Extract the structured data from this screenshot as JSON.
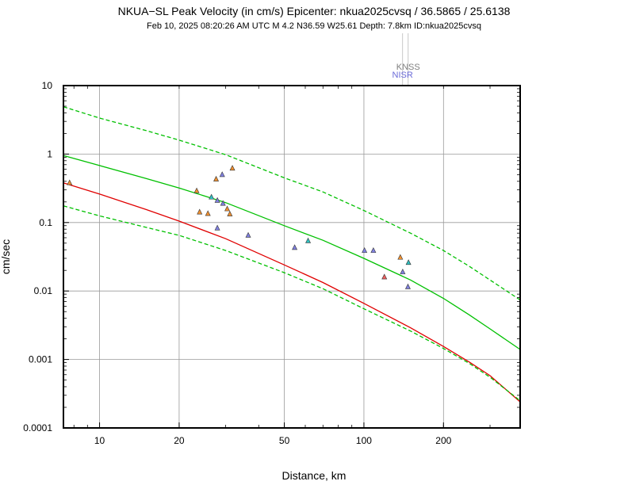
{
  "chart_data": {
    "type": "scatter",
    "title": "NKUA−SL Peak Velocity (in cm/s) Epicenter: nkua2025cvsq / 36.5865 / 25.6138",
    "subtitle": "Feb 10, 2025 08:20:26 AM UTC   M 4.2   N36.59 W25.61   Depth: 7.8km   ID:nkua2025cvsq",
    "xlabel": "Distance, km",
    "ylabel": "cm/sec",
    "xscale": "log",
    "yscale": "log",
    "xlim": [
      7.3,
      390
    ],
    "ylim": [
      0.0001,
      10
    ],
    "xticks": [
      {
        "value": 10,
        "label": "10"
      },
      {
        "value": 20,
        "label": "20"
      },
      {
        "value": 50,
        "label": "50"
      },
      {
        "value": 100,
        "label": "100"
      },
      {
        "value": 200,
        "label": "200"
      }
    ],
    "yticks": [
      {
        "value": 0.0001,
        "label": "0.0001"
      },
      {
        "value": 0.001,
        "label": "0.001"
      },
      {
        "value": 0.01,
        "label": "0.01"
      },
      {
        "value": 0.1,
        "label": "0.1"
      },
      {
        "value": 1,
        "label": "1"
      },
      {
        "value": 10,
        "label": "10"
      }
    ],
    "grid": true,
    "station_labels": [
      {
        "label": "KNSS",
        "x": 147,
        "color": "#7f7f7f"
      },
      {
        "label": "NISR",
        "x": 140,
        "color": "#6a6ad8"
      }
    ],
    "series": [
      {
        "style": "solid",
        "color": "#e00000",
        "x": [
          7.3,
          10,
          15,
          20,
          30,
          50,
          70,
          100,
          150,
          200,
          250,
          300,
          390
        ],
        "y": [
          0.38,
          0.26,
          0.155,
          0.105,
          0.058,
          0.024,
          0.0133,
          0.0066,
          0.0029,
          0.00155,
          0.00092,
          0.00058,
          0.00024
        ]
      },
      {
        "style": "solid",
        "color": "#00c000",
        "x": [
          7.3,
          10,
          15,
          20,
          30,
          50,
          70,
          100,
          150,
          200,
          250,
          300,
          390
        ],
        "y": [
          0.95,
          0.68,
          0.44,
          0.32,
          0.195,
          0.09,
          0.055,
          0.03,
          0.0145,
          0.0078,
          0.0045,
          0.0028,
          0.0014
        ]
      },
      {
        "style": "dashed",
        "color": "#00c000",
        "x": [
          7.3,
          10,
          15,
          20,
          30,
          50,
          70,
          100,
          150,
          200,
          250,
          300,
          390
        ],
        "y": [
          4.9,
          3.35,
          2.2,
          1.6,
          0.98,
          0.45,
          0.28,
          0.15,
          0.07,
          0.039,
          0.023,
          0.0145,
          0.0074
        ]
      },
      {
        "style": "dashed",
        "color": "#00c000",
        "x": [
          7.3,
          10,
          15,
          20,
          30,
          50,
          70,
          100,
          150,
          200,
          250,
          300,
          390
        ],
        "y": [
          0.175,
          0.125,
          0.085,
          0.065,
          0.039,
          0.0185,
          0.0108,
          0.0055,
          0.0026,
          0.00145,
          0.00088,
          0.00055,
          0.00025
        ]
      }
    ],
    "points": [
      {
        "x": 7.7,
        "y": 0.38,
        "color": "#f09030"
      },
      {
        "x": 23.3,
        "y": 0.29,
        "color": "#f09030"
      },
      {
        "x": 23.9,
        "y": 0.142,
        "color": "#f09030"
      },
      {
        "x": 25.7,
        "y": 0.135,
        "color": "#f09030"
      },
      {
        "x": 26.5,
        "y": 0.235,
        "color": "#30c0c0"
      },
      {
        "x": 27.6,
        "y": 0.43,
        "color": "#f09030"
      },
      {
        "x": 27.9,
        "y": 0.21,
        "color": "#8080e0"
      },
      {
        "x": 27.9,
        "y": 0.083,
        "color": "#8080e0"
      },
      {
        "x": 29.1,
        "y": 0.5,
        "color": "#8080e0"
      },
      {
        "x": 29.3,
        "y": 0.19,
        "color": "#8080e0"
      },
      {
        "x": 30.4,
        "y": 0.158,
        "color": "#f09030"
      },
      {
        "x": 31.1,
        "y": 0.133,
        "color": "#f09030"
      },
      {
        "x": 31.8,
        "y": 0.62,
        "color": "#f09030"
      },
      {
        "x": 36.5,
        "y": 0.065,
        "color": "#8080e0"
      },
      {
        "x": 54.7,
        "y": 0.043,
        "color": "#8080e0"
      },
      {
        "x": 61.5,
        "y": 0.054,
        "color": "#30c0c0"
      },
      {
        "x": 100.5,
        "y": 0.039,
        "color": "#8080e0"
      },
      {
        "x": 108.6,
        "y": 0.039,
        "color": "#8080e0"
      },
      {
        "x": 119.5,
        "y": 0.016,
        "color": "#f06060"
      },
      {
        "x": 137.3,
        "y": 0.031,
        "color": "#f09030"
      },
      {
        "x": 140.2,
        "y": 0.019,
        "color": "#8080e0"
      },
      {
        "x": 146.7,
        "y": 0.0115,
        "color": "#8080e0"
      },
      {
        "x": 147.4,
        "y": 0.026,
        "color": "#30c0c0"
      }
    ]
  }
}
